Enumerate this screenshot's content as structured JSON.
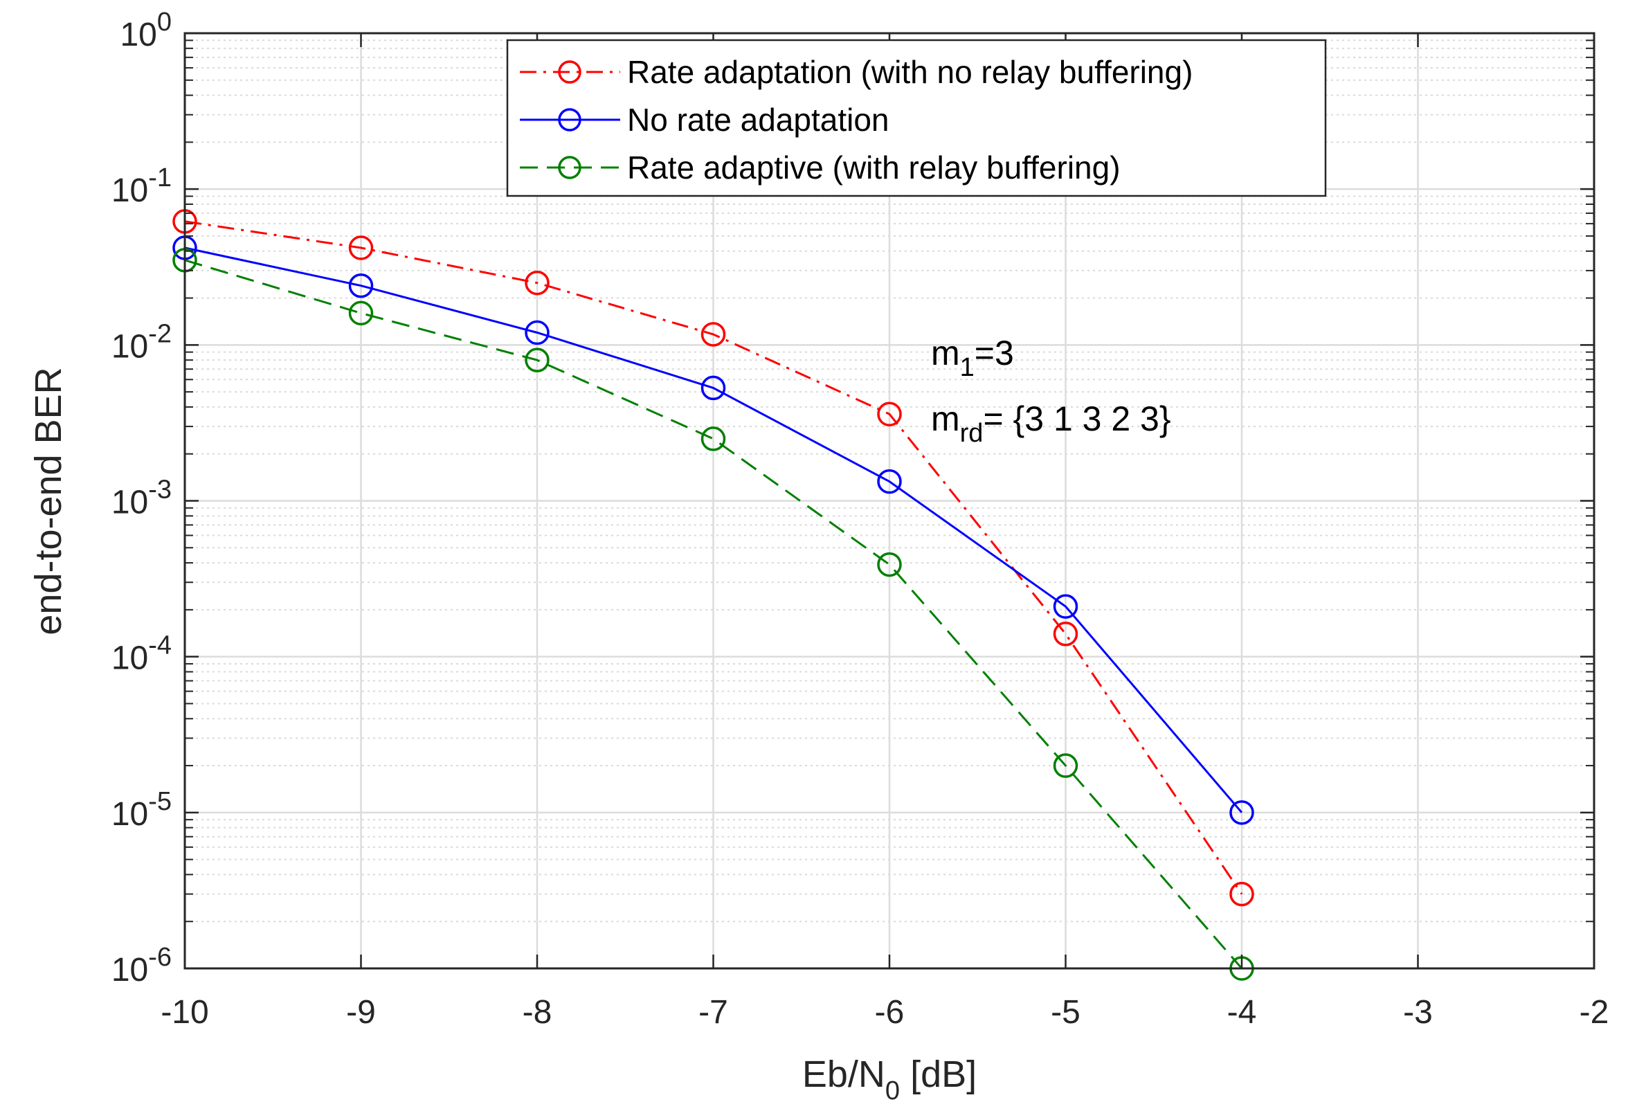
{
  "chart_data": {
    "type": "line",
    "yscale": "log",
    "title": "",
    "xlabel": {
      "main": "Eb/N",
      "sub": "0",
      "unit": " [dB]"
    },
    "ylabel": "end-to-end BER",
    "xlim": [
      -10,
      -2
    ],
    "ylim": [
      1e-06,
      1
    ],
    "grid": true,
    "xticks": [
      -10,
      -9,
      -8,
      -7,
      -6,
      -5,
      -4,
      -3,
      -2
    ],
    "xtick_labels": [
      "-10",
      "-9",
      "-8",
      "-7",
      "-6",
      "-5",
      "-4",
      "-3",
      "-2"
    ],
    "yticks": [
      {
        "value": 1,
        "base": "10",
        "exp": "0"
      },
      {
        "value": 0.1,
        "base": "10",
        "exp": "-1"
      },
      {
        "value": 0.01,
        "base": "10",
        "exp": "-2"
      },
      {
        "value": 0.001,
        "base": "10",
        "exp": "-3"
      },
      {
        "value": 0.0001,
        "base": "10",
        "exp": "-4"
      },
      {
        "value": 1e-05,
        "base": "10",
        "exp": "-5"
      },
      {
        "value": 1e-06,
        "base": "10",
        "exp": "-6"
      }
    ],
    "legend_position": "top-center",
    "series": [
      {
        "name": "Rate adaptation (with no relay buffering)",
        "color": "#ff0000",
        "linestyle": "dashdot",
        "marker": "circle",
        "x": [
          -10,
          -9,
          -8,
          -7,
          -6,
          -5,
          -4
        ],
        "y": [
          0.062,
          0.042,
          0.025,
          0.0117,
          0.0036,
          0.00014,
          3e-06
        ]
      },
      {
        "name": "No rate adaptation",
        "color": "#0000ff",
        "linestyle": "solid",
        "marker": "circle",
        "x": [
          -10,
          -9,
          -8,
          -7,
          -6,
          -5,
          -4
        ],
        "y": [
          0.042,
          0.024,
          0.012,
          0.0053,
          0.00133,
          0.00021,
          1e-05
        ]
      },
      {
        "name": "Rate adaptive (with relay buffering)",
        "color": "#008000",
        "linestyle": "dashed",
        "marker": "circle",
        "x": [
          -10,
          -9,
          -8,
          -7,
          -6,
          -5,
          -4
        ],
        "y": [
          0.035,
          0.016,
          0.008,
          0.0025,
          0.00039,
          2e-05,
          1e-06
        ]
      }
    ],
    "annotations": [
      {
        "base": "m",
        "sub": "1",
        "rest": "=3"
      },
      {
        "base": "m",
        "sub": "rd",
        "rest": "= {3 1 3 2 3}"
      }
    ]
  }
}
